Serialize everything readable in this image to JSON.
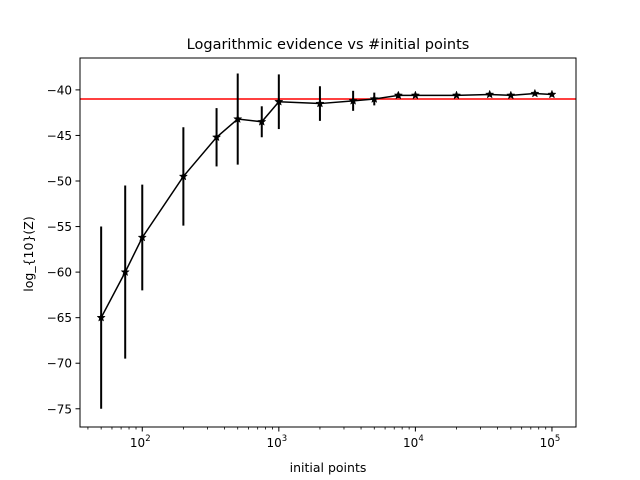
{
  "chart_data": {
    "type": "line",
    "title": "Logarithmic evidence vs #initial points",
    "xlabel": "initial points",
    "ylabel": "log_{10}(Z)",
    "x_scale": "log",
    "xlim": [
      35,
      150000
    ],
    "ylim": [
      -77,
      -36.5
    ],
    "x_ticks": [
      {
        "value": 100,
        "base": "10",
        "exp": "2"
      },
      {
        "value": 1000,
        "base": "10",
        "exp": "3"
      },
      {
        "value": 10000,
        "base": "10",
        "exp": "4"
      },
      {
        "value": 100000,
        "base": "10",
        "exp": "5"
      }
    ],
    "y_ticks": [
      -40,
      -45,
      -50,
      -55,
      -60,
      -65,
      -70,
      -75
    ],
    "y_tick_labels": [
      "−40",
      "−45",
      "−50",
      "−55",
      "−60",
      "−65",
      "−70",
      "−75"
    ],
    "grid": false,
    "reference_line": {
      "y": -41.0,
      "color": "#ff0000"
    },
    "series": [
      {
        "color": "#000000",
        "marker": "star",
        "points": [
          {
            "x": 50,
            "y": -65.0,
            "err": 10.0
          },
          {
            "x": 75,
            "y": -60.0,
            "err": 9.5
          },
          {
            "x": 100,
            "y": -56.2,
            "err": 5.8
          },
          {
            "x": 200,
            "y": -49.5,
            "err": 5.4
          },
          {
            "x": 350,
            "y": -45.2,
            "err": 3.2
          },
          {
            "x": 500,
            "y": -43.2,
            "err": 5.0
          },
          {
            "x": 750,
            "y": -43.5,
            "err": 1.7
          },
          {
            "x": 1000,
            "y": -41.3,
            "err": 3.0
          },
          {
            "x": 2000,
            "y": -41.5,
            "err": 1.9
          },
          {
            "x": 3500,
            "y": -41.2,
            "err": 1.1
          },
          {
            "x": 5000,
            "y": -41.0,
            "err": 0.7
          },
          {
            "x": 7500,
            "y": -40.6,
            "err": 0.3
          },
          {
            "x": 10000,
            "y": -40.6,
            "err": 0.2
          },
          {
            "x": 20000,
            "y": -40.6,
            "err": 0.15
          },
          {
            "x": 35000,
            "y": -40.5,
            "err": 0.15
          },
          {
            "x": 50000,
            "y": -40.6,
            "err": 0.1
          },
          {
            "x": 75000,
            "y": -40.4,
            "err": 0.15
          },
          {
            "x": 100000,
            "y": -40.5,
            "err": 0.15
          }
        ]
      }
    ]
  }
}
